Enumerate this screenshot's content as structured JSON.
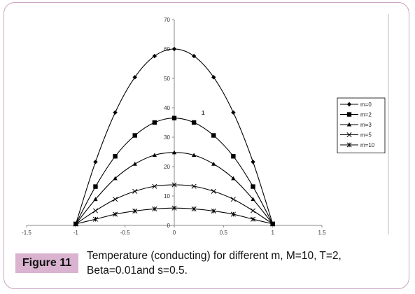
{
  "figure": {
    "label": "Figure 11",
    "caption": "Temperature (conducting) for different m, M=10, T=2, Beta=0.01and s=0.5."
  },
  "chart_data": {
    "type": "line",
    "xlim": [
      -1.5,
      1.5
    ],
    "ylim": [
      0,
      70
    ],
    "x_ticks": [
      "-1.5",
      "-1",
      "-0.5",
      "0",
      "0.5",
      "1",
      "1.5"
    ],
    "y_ticks": [
      "0",
      "10",
      "20",
      "30",
      "40",
      "50",
      "60",
      "70"
    ],
    "annotation": "1",
    "legend_position": "right",
    "x": [
      -1,
      -0.8,
      -0.6,
      -0.4,
      -0.2,
      0,
      0.2,
      0.4,
      0.6,
      0.8,
      1
    ],
    "series": [
      {
        "name": "m=0",
        "marker": "diamond",
        "values": [
          0.5,
          21.6,
          38.4,
          50.4,
          57.6,
          60.0,
          57.6,
          50.4,
          38.4,
          21.6,
          0.5
        ]
      },
      {
        "name": "m=2",
        "marker": "square",
        "values": [
          0.5,
          13.2,
          23.5,
          30.6,
          35.0,
          36.5,
          35.0,
          30.6,
          23.5,
          13.2,
          0.5
        ]
      },
      {
        "name": "m=3",
        "marker": "triangle",
        "values": [
          0.5,
          8.9,
          16.0,
          20.9,
          23.9,
          24.8,
          23.9,
          20.9,
          16.0,
          8.9,
          0.5
        ]
      },
      {
        "name": "m=5",
        "marker": "x",
        "values": [
          0.5,
          5.0,
          8.9,
          11.6,
          13.3,
          13.8,
          13.3,
          11.6,
          8.9,
          5.0,
          0.5
        ]
      },
      {
        "name": "m=10",
        "marker": "star",
        "values": [
          0.5,
          2.1,
          3.8,
          4.9,
          5.6,
          5.9,
          5.6,
          4.9,
          3.8,
          2.1,
          0.5
        ]
      }
    ]
  }
}
